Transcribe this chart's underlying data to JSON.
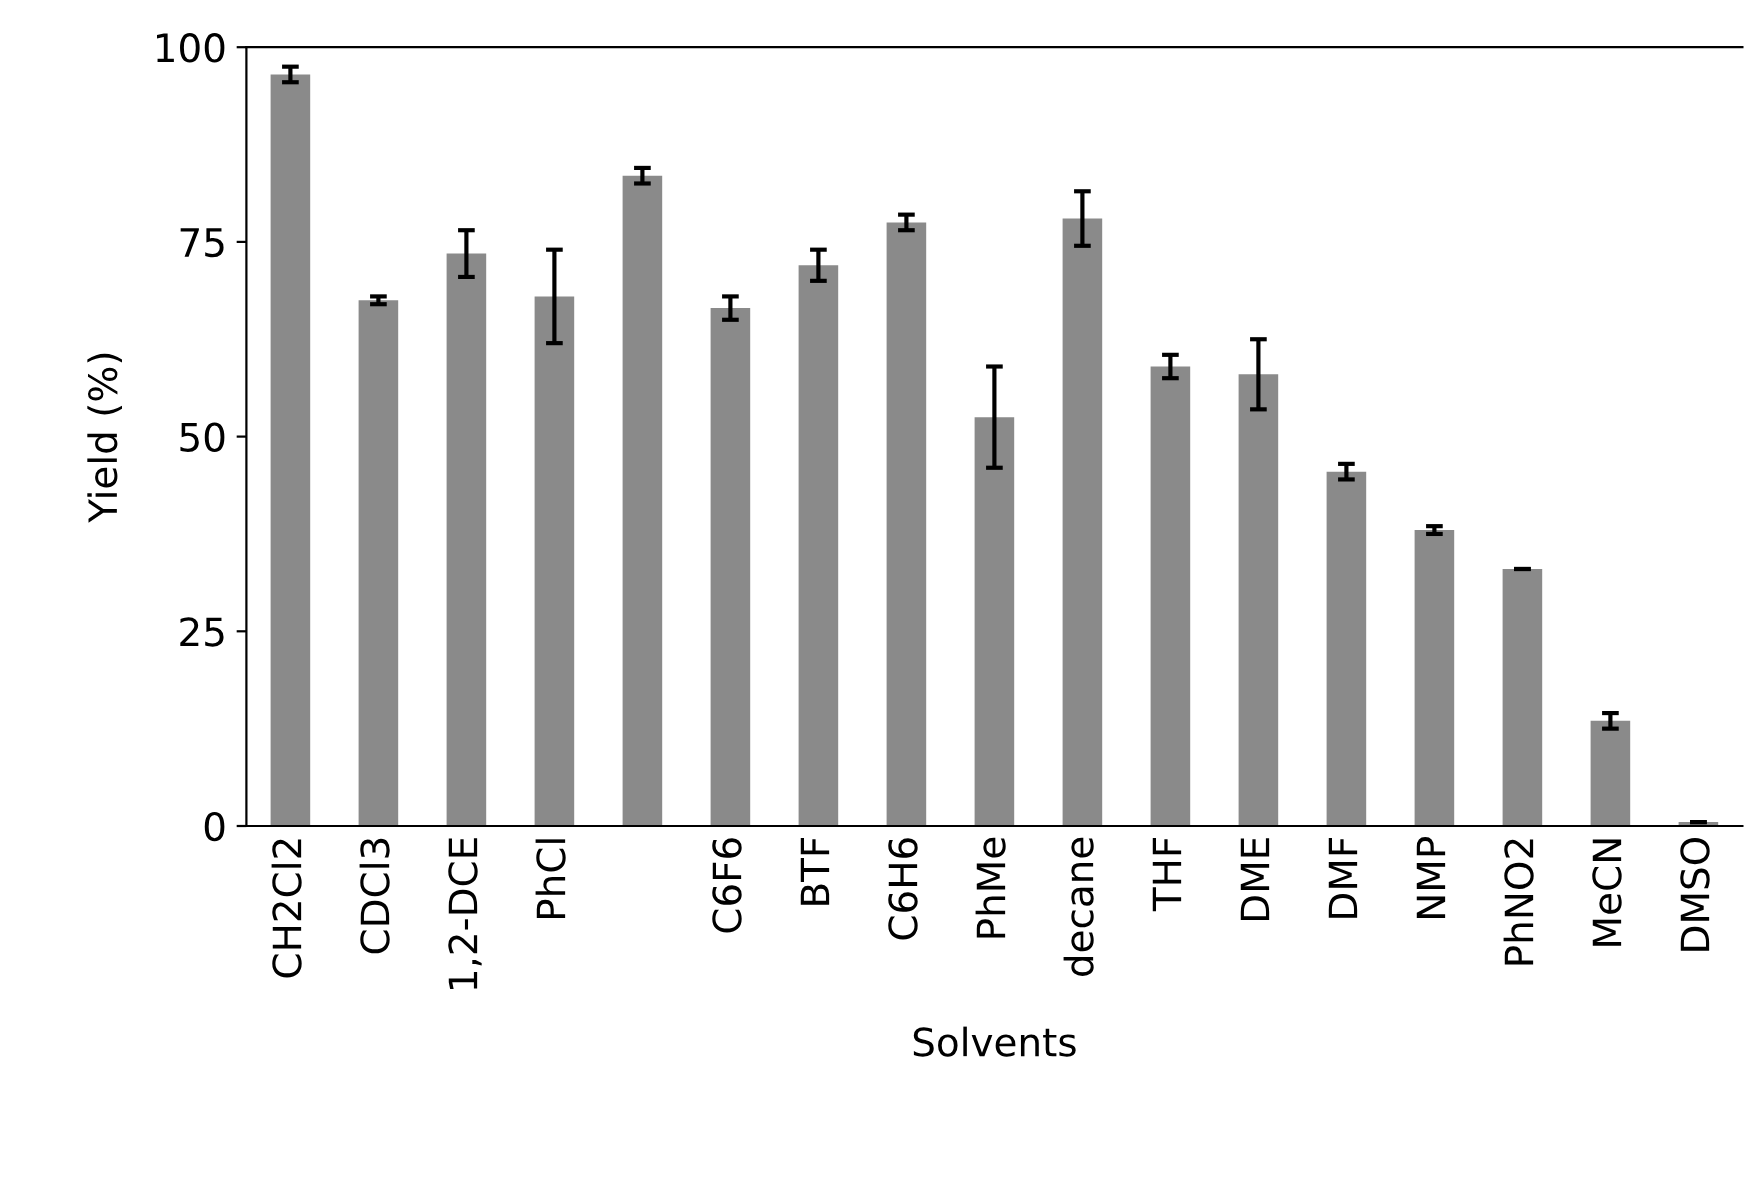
{
  "chart_data": {
    "type": "bar",
    "xlabel": "Solvents",
    "ylabel": "Yield (%)",
    "categories": [
      "CH2Cl2",
      "CDCl3",
      "1,2-DCE",
      "PhCl",
      null,
      "C6F6",
      "BTF",
      "C6H6",
      "PhMe",
      "decane",
      "THF",
      "DME",
      "DMF",
      "NMP",
      "PhNO2",
      "MeCN",
      "DMSO"
    ],
    "values": [
      96.5,
      67.5,
      73.5,
      68,
      83.5,
      66.5,
      72,
      77.5,
      52.5,
      78,
      59,
      58,
      45.5,
      38,
      33,
      13.5,
      0.5
    ],
    "errors": [
      1,
      0.5,
      3,
      6,
      1,
      1.5,
      2,
      1,
      6.5,
      3.5,
      1.5,
      4.5,
      1,
      0.5,
      null,
      1,
      null
    ],
    "color": "#8a8a8a",
    "ylim": [
      0,
      100
    ],
    "yticks": [
      0,
      25,
      50,
      75,
      100
    ],
    "grid": false
  }
}
